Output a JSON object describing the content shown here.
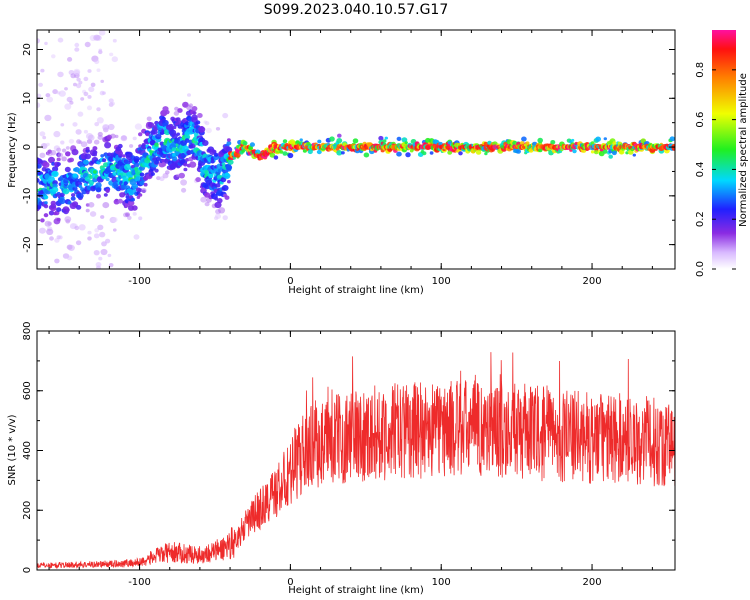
{
  "title": "S099.2023.040.10.57.G17",
  "colors": {
    "snr_line": "#ee2b2b",
    "background": "#ffffff",
    "axis": "#000000"
  },
  "chart_data": [
    {
      "type": "heatmap",
      "title": "S099.2023.040.10.57.G17",
      "xlabel": "Height of straight line (km)",
      "ylabel": "Frequency (Hz)",
      "xlim": [
        -168,
        255
      ],
      "ylim": [
        -25,
        24
      ],
      "xticks": [
        -100,
        0,
        100,
        200
      ],
      "yticks": [
        -20,
        -10,
        0,
        10,
        20
      ],
      "grid": false,
      "colorbar": {
        "label": "Normalized spectral amplitude",
        "range": [
          0,
          0.96
        ],
        "ticks": [
          "0.0",
          "0.2",
          "0.4",
          "0.6",
          "0.8"
        ],
        "colormap": "white-purple-blue-cyan-green-yellow-orange-red-magenta"
      },
      "ridge": {
        "description_points_x": [
          -168,
          -150,
          -120,
          -105,
          -95,
          -85,
          -75,
          -65,
          -55,
          -45,
          -40,
          -30,
          -20,
          -10,
          0,
          50,
          100,
          150,
          200,
          255
        ],
        "description_points_y": [
          -8,
          -8,
          -4,
          -7,
          -2,
          2,
          0,
          3,
          -5,
          -6,
          -2,
          0,
          -2,
          0,
          0,
          0,
          0,
          0,
          0,
          0
        ]
      }
    },
    {
      "type": "line",
      "xlabel": "Height of straight line (km)",
      "ylabel": "SNR (10 * v/v)",
      "xlim": [
        -168,
        255
      ],
      "ylim": [
        0,
        800
      ],
      "xticks": [
        -100,
        0,
        100,
        200
      ],
      "yticks": [
        0,
        200,
        400,
        600,
        800
      ],
      "grid": false,
      "envelope": {
        "x": [
          -168,
          -120,
          -100,
          -90,
          -80,
          -60,
          -45,
          -35,
          -25,
          -15,
          -10,
          0,
          5,
          15,
          25,
          40,
          60,
          80,
          100,
          120,
          140,
          160,
          180,
          200,
          220,
          240,
          255
        ],
        "y": [
          15,
          20,
          25,
          45,
          60,
          50,
          70,
          110,
          180,
          230,
          260,
          320,
          370,
          420,
          430,
          450,
          460,
          470,
          470,
          475,
          470,
          460,
          450,
          440,
          440,
          430,
          420
        ]
      }
    }
  ]
}
